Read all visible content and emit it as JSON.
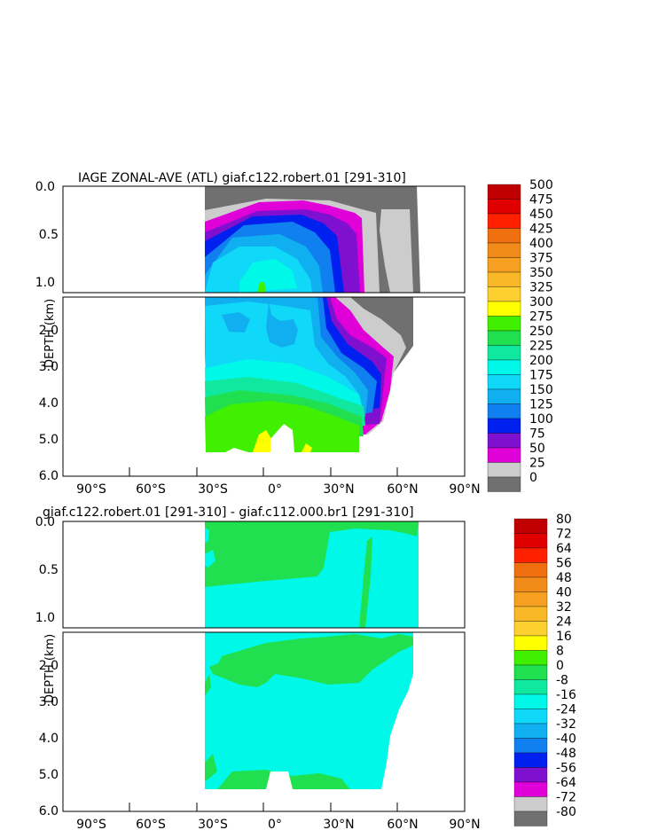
{
  "chart_data": [
    {
      "type": "heatmap",
      "title": "IAGE ZONAL-AVE (ATL) giaf.c122.robert.01 [291-310]",
      "xlabel": "",
      "ylabel": "DEPTH (km)",
      "xticks": [
        "90°S",
        "60°S",
        "30°S",
        "0°",
        "30°N",
        "60°N",
        "90°N"
      ],
      "xlim": [
        -90,
        90
      ],
      "yticks_upper": [
        "0.0",
        "0.5",
        "1.0"
      ],
      "yticks_lower": [
        "2.0",
        "3.0",
        "4.0",
        "5.0",
        "6.0"
      ],
      "ylim": [
        0,
        6
      ],
      "colorbar_levels": [
        "500",
        "475",
        "450",
        "425",
        "400",
        "375",
        "350",
        "325",
        "300",
        "275",
        "250",
        "225",
        "200",
        "175",
        "150",
        "125",
        "100",
        "75",
        "50",
        "25",
        "0"
      ],
      "colorbar_colors": [
        "#c00000",
        "#e00000",
        "#ff2000",
        "#f07010",
        "#f08a18",
        "#f5a020",
        "#f8b828",
        "#fbd030",
        "#ffff00",
        "#40f000",
        "#20e050",
        "#10e8a0",
        "#00f8e8",
        "#10d8f8",
        "#10b0f0",
        "#1080f0",
        "#0020f0",
        "#8010d0",
        "#e000d8",
        "#cccccc",
        "#707070"
      ]
    },
    {
      "type": "heatmap",
      "title": "giaf.c122.robert.01 [291-310] - giaf.c112.000.br1 [291-310]",
      "xlabel": "",
      "ylabel": "DEPTH (km)",
      "xticks": [
        "90°S",
        "60°S",
        "30°S",
        "0°",
        "30°N",
        "60°N",
        "90°N"
      ],
      "xlim": [
        -90,
        90
      ],
      "yticks_upper": [
        "0.0",
        "0.5",
        "1.0"
      ],
      "yticks_lower": [
        "2.0",
        "3.0",
        "4.0",
        "5.0",
        "6.0"
      ],
      "ylim": [
        0,
        6
      ],
      "colorbar_levels": [
        "80",
        "72",
        "64",
        "56",
        "48",
        "40",
        "32",
        "24",
        "16",
        "8",
        "0",
        "-8",
        "-16",
        "-24",
        "-32",
        "-40",
        "-48",
        "-56",
        "-64",
        "-72",
        "-80"
      ],
      "colorbar_colors": [
        "#c00000",
        "#e00000",
        "#ff2000",
        "#f07010",
        "#f08a18",
        "#f5a020",
        "#f8b828",
        "#fbd030",
        "#ffff00",
        "#40f000",
        "#20e050",
        "#10e8a0",
        "#00f8e8",
        "#10d8f8",
        "#10b0f0",
        "#1080f0",
        "#0020f0",
        "#8010d0",
        "#e000d8",
        "#cccccc",
        "#707070"
      ]
    }
  ]
}
